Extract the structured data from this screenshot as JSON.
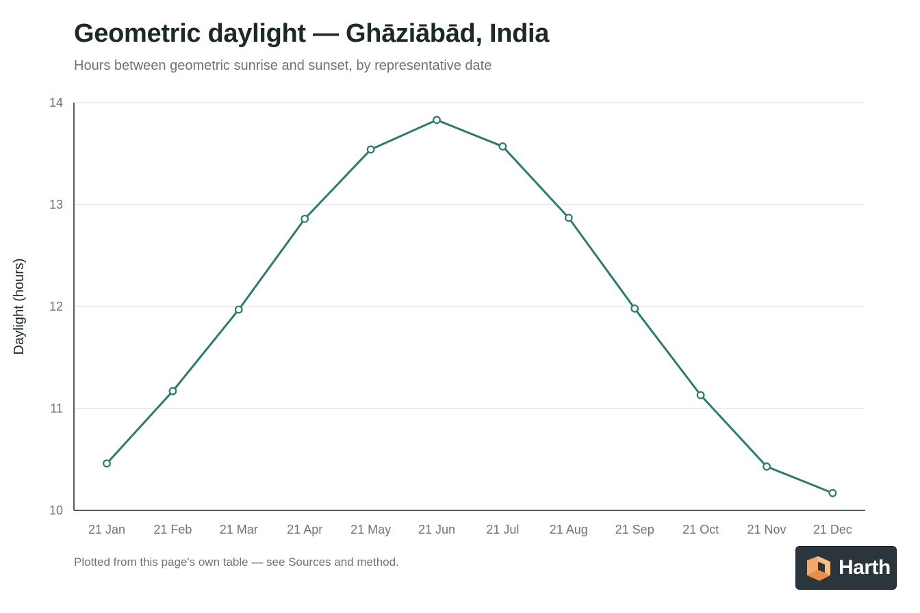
{
  "header": {
    "title": "Geometric daylight — Ghāziābād, India",
    "subtitle": "Hours between geometric sunrise and sunset, by representative date"
  },
  "footer": {
    "note": "Plotted from this page's own table — see Sources and method."
  },
  "logo": {
    "text": "Harth",
    "icon": "cube-icon"
  },
  "colors": {
    "line": "#2e7a6e",
    "axis": "#1c2a26",
    "grid": "#e6e9e8",
    "tick_text": "#6b7672",
    "marker_fill": "#ffffff"
  },
  "chart_data": {
    "type": "line",
    "title": "Geometric daylight — Ghāziābād, India",
    "subtitle": "Hours between geometric sunrise and sunset, by representative date",
    "xlabel": "",
    "ylabel": "Daylight (hours)",
    "categories": [
      "21 Jan",
      "21 Feb",
      "21 Mar",
      "21 Apr",
      "21 May",
      "21 Jun",
      "21 Jul",
      "21 Aug",
      "21 Sep",
      "21 Oct",
      "21 Nov",
      "21 Dec"
    ],
    "series": [
      {
        "values": [
          10.46,
          11.17,
          11.97,
          12.86,
          13.54,
          13.83,
          13.57,
          12.87,
          11.98,
          11.13,
          10.43,
          10.17
        ]
      }
    ],
    "ylim": [
      10,
      14
    ],
    "yticks": [
      10,
      11,
      12,
      13,
      14
    ],
    "grid": true,
    "legend": "none"
  }
}
